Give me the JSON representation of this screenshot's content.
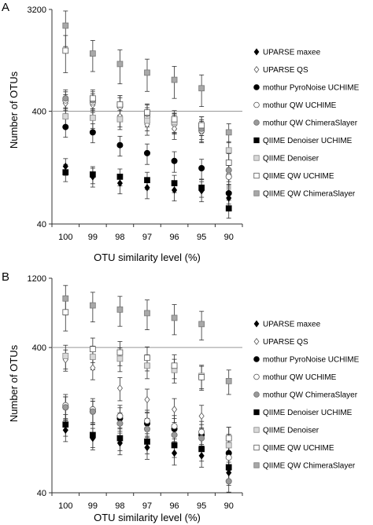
{
  "colors": {
    "black": "#000000",
    "white": "#ffffff",
    "mid_gray": "#9a9a9a",
    "light_gray": "#d8d8d8",
    "dark_gray": "#a8a8a8",
    "refline": "#999999"
  },
  "chart_data": [
    {
      "type": "scatter",
      "panel_label": "A",
      "xlabel": "OTU similarity level (%)",
      "ylabel": "Number of OTUs",
      "log_scale_y": true,
      "ylim": [
        40,
        3200
      ],
      "yticks": [
        40,
        400,
        3200
      ],
      "reference_line": 400,
      "categories": [
        "100",
        "99",
        "98",
        "97",
        "96",
        "95",
        "90"
      ],
      "legend_position": "right",
      "series": [
        {
          "name": "UPARSE maxee",
          "marker": "diamond-filled",
          "values": [
            130,
            105,
            92,
            84,
            80,
            79,
            68
          ],
          "errors": [
            22,
            20,
            18,
            17,
            16,
            16,
            14
          ]
        },
        {
          "name": "UPARSE QS",
          "marker": "diamond-open",
          "values": [
            470,
            455,
            360,
            305,
            280,
            260,
            110
          ],
          "errors": [
            90,
            85,
            70,
            60,
            55,
            50,
            22
          ]
        },
        {
          "name": "mothur PyroNoise UCHIME",
          "marker": "circle-filled",
          "values": [
            290,
            260,
            200,
            170,
            145,
            125,
            75
          ],
          "errors": [
            55,
            50,
            40,
            35,
            30,
            25,
            15
          ]
        },
        {
          "name": "mothur QW UCHIME",
          "marker": "circle-open",
          "values": [
            500,
            480,
            440,
            360,
            310,
            270,
            105
          ],
          "errors": [
            95,
            90,
            85,
            70,
            60,
            55,
            20
          ]
        },
        {
          "name": "mothur QW ChimeraSlayer",
          "marker": "circle-gray",
          "values": [
            520,
            500,
            460,
            380,
            320,
            280,
            120
          ],
          "errors": [
            100,
            95,
            90,
            75,
            65,
            55,
            25
          ]
        },
        {
          "name": "QIIME Denoiser UCHIME",
          "marker": "square-filled",
          "values": [
            115,
            110,
            105,
            98,
            92,
            84,
            55
          ],
          "errors": [
            20,
            19,
            18,
            17,
            16,
            15,
            10
          ]
        },
        {
          "name": "QIIME Denoiser",
          "marker": "square-light",
          "values": [
            360,
            350,
            340,
            330,
            320,
            300,
            180
          ],
          "errors": [
            70,
            68,
            65,
            62,
            60,
            57,
            35
          ]
        },
        {
          "name": "QIIME QW UCHIME",
          "marker": "square-open",
          "values": [
            1380,
            520,
            460,
            390,
            340,
            300,
            140
          ],
          "errors": [
            500,
            100,
            90,
            75,
            65,
            57,
            28
          ]
        },
        {
          "name": "QIIME QW ChimeraSlayer",
          "marker": "square-gray",
          "values": [
            2300,
            1300,
            1050,
            880,
            760,
            640,
            260
          ],
          "errors": [
            800,
            400,
            350,
            280,
            240,
            200,
            50
          ]
        }
      ]
    },
    {
      "type": "scatter",
      "panel_label": "B",
      "xlabel": "OTU similarity level (%)",
      "ylabel": "Number of OTUs",
      "log_scale_y": true,
      "ylim": [
        40,
        1200
      ],
      "yticks": [
        40,
        400,
        1200
      ],
      "reference_line": 400,
      "categories": [
        "100",
        "99",
        "98",
        "97",
        "96",
        "95",
        "90"
      ],
      "legend_position": "right",
      "series": [
        {
          "name": "UPARSE maxee",
          "marker": "diamond-filled",
          "values": [
            108,
            95,
            88,
            82,
            75,
            72,
            55
          ],
          "errors": [
            18,
            16,
            15,
            14,
            13,
            12,
            10
          ]
        },
        {
          "name": "UPARSE QS",
          "marker": "diamond-open",
          "values": [
            330,
            290,
            210,
            175,
            150,
            135,
            95
          ],
          "errors": [
            55,
            50,
            38,
            32,
            28,
            25,
            18
          ]
        },
        {
          "name": "mothur PyroNoise UCHIME",
          "marker": "circle-filled",
          "values": [
            155,
            145,
            130,
            120,
            110,
            100,
            75
          ],
          "errors": [
            28,
            26,
            24,
            22,
            20,
            18,
            14
          ]
        },
        {
          "name": "mothur QW UCHIME",
          "marker": "circle-open",
          "values": [
            160,
            150,
            135,
            125,
            115,
            105,
            70
          ],
          "errors": [
            30,
            28,
            25,
            23,
            21,
            19,
            13
          ]
        },
        {
          "name": "mothur QW ChimeraSlayer",
          "marker": "circle-gray",
          "values": [
            155,
            145,
            120,
            110,
            100,
            95,
            48
          ],
          "errors": [
            28,
            26,
            22,
            20,
            18,
            17,
            9
          ]
        },
        {
          "name": "QIIME Denoiser UCHIME",
          "marker": "square-filled",
          "values": [
            118,
            100,
            95,
            90,
            85,
            80,
            60
          ],
          "errors": [
            20,
            18,
            17,
            16,
            15,
            14,
            11
          ]
        },
        {
          "name": "QIIME Denoiser",
          "marker": "square-light",
          "values": [
            350,
            345,
            335,
            300,
            280,
            255,
            85
          ],
          "errors": [
            65,
            64,
            62,
            56,
            52,
            47,
            16
          ]
        },
        {
          "name": "QIIME QW UCHIME",
          "marker": "square-open",
          "values": [
            700,
            390,
            370,
            340,
            300,
            250,
            95
          ],
          "errors": [
            180,
            75,
            70,
            64,
            56,
            47,
            18
          ]
        },
        {
          "name": "QIIME QW ChimeraSlayer",
          "marker": "square-gray",
          "values": [
            870,
            780,
            730,
            690,
            640,
            580,
            235
          ],
          "errors": [
            200,
            180,
            170,
            160,
            150,
            130,
            45
          ]
        }
      ]
    }
  ]
}
